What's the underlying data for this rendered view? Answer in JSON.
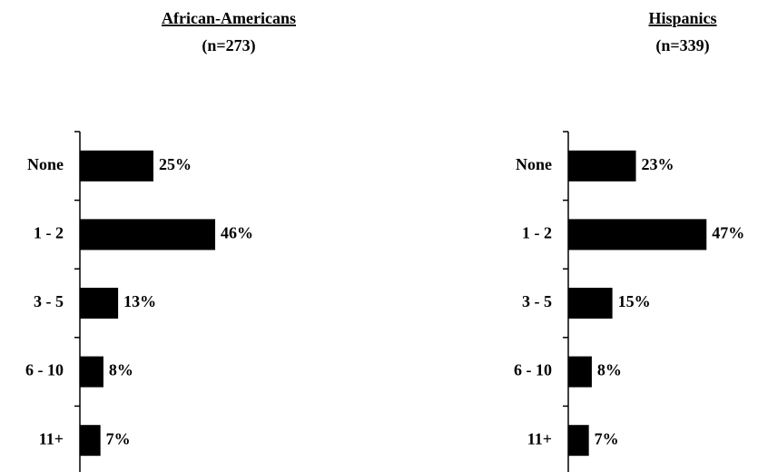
{
  "chart_data": [
    {
      "type": "bar",
      "orientation": "horizontal",
      "title": "African-Americans",
      "subtitle": "(n=273)",
      "categories": [
        "None",
        "1 - 2",
        "3 - 5",
        "6 - 10",
        "11+"
      ],
      "values": [
        25,
        46,
        13,
        8,
        7
      ],
      "value_labels": [
        "25%",
        "46%",
        "13%",
        "8%",
        "7%"
      ],
      "color": "#000000"
    },
    {
      "type": "bar",
      "orientation": "horizontal",
      "title": "Hispanics",
      "subtitle": "(n=339)",
      "categories": [
        "None",
        "1 - 2",
        "3 - 5",
        "6 - 10",
        "11+"
      ],
      "values": [
        23,
        47,
        15,
        8,
        7
      ],
      "value_labels": [
        "23%",
        "47%",
        "15%",
        "8%",
        "7%"
      ],
      "color": "#000000"
    }
  ]
}
